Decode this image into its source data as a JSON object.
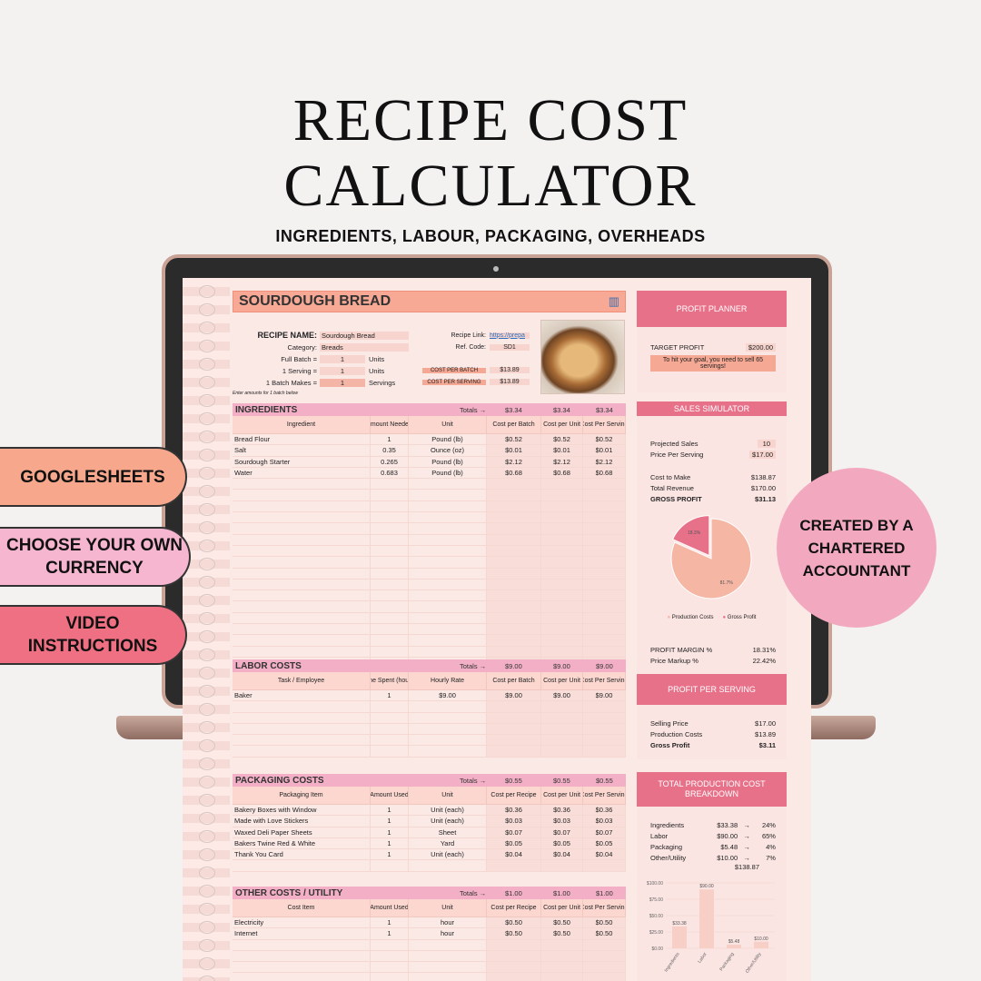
{
  "header": {
    "title_line1": "RECIPE COST",
    "title_line2": "CALCULATOR",
    "subtitle": "INGREDIENTS, LABOUR, PACKAGING, OVERHEADS"
  },
  "features": [
    "GOOGLESHEETS",
    "CHOOSE YOUR OWN CURRENCY",
    "VIDEO INSTRUCTIONS"
  ],
  "badge": "CREATED BY A CHARTERED ACCOUNTANT",
  "sheet": {
    "recipe_title": "SOURDOUGH BREAD",
    "info": {
      "name_label": "RECIPE NAME:",
      "name": "Sourdough Bread",
      "category_label": "Category:",
      "category": "Breads",
      "full_batch_label": "Full Batch =",
      "full_batch": "1",
      "full_batch_unit": "Units",
      "serving_label": "1 Serving =",
      "serving": "1",
      "serving_unit": "Units",
      "makes_label": "1 Batch Makes =",
      "makes": "1",
      "makes_unit": "Servings",
      "note": "Enter amounts for 1 batch below",
      "link_label": "Recipe Link:",
      "link": "https://prepa",
      "ref_label": "Ref. Code:",
      "ref": "SD1",
      "cpb_label": "COST PER BATCH",
      "cpb": "$13.89",
      "cps_label": "COST PER SERVING",
      "cps": "$13.89"
    },
    "totals_label": "Totals →",
    "ingredients": {
      "title": "INGREDIENTS",
      "totals": [
        "$3.34",
        "$3.34",
        "$3.34"
      ],
      "headers": [
        "Ingredient",
        "Amount Needed",
        "Unit",
        "Cost per Batch",
        "Cost per Unit",
        "Cost Per Serving"
      ],
      "rows": [
        [
          "Bread Flour",
          "1",
          "Pound (lb)",
          "$0.52",
          "$0.52",
          "$0.52"
        ],
        [
          "Salt",
          "0.35",
          "Ounce (oz)",
          "$0.01",
          "$0.01",
          "$0.01"
        ],
        [
          "Sourdough Starter",
          "0.265",
          "Pound (lb)",
          "$2.12",
          "$2.12",
          "$2.12"
        ],
        [
          "Water",
          "0.683",
          "Pound (lb)",
          "$0.68",
          "$0.68",
          "$0.68"
        ]
      ]
    },
    "labor": {
      "title": "LABOR COSTS",
      "totals": [
        "$9.00",
        "$9.00",
        "$9.00"
      ],
      "headers": [
        "Task / Employee",
        "Time Spent (hours)",
        "Hourly Rate",
        "Cost per Batch",
        "Cost per Unit",
        "Cost Per Serving"
      ],
      "rows": [
        [
          "Baker",
          "1",
          "$9.00",
          "$9.00",
          "$9.00",
          "$9.00"
        ]
      ]
    },
    "packaging": {
      "title": "PACKAGING COSTS",
      "totals": [
        "$0.55",
        "$0.55",
        "$0.55"
      ],
      "headers": [
        "Packaging Item",
        "Amount Used",
        "Unit",
        "Cost per Recipe",
        "Cost per Unit",
        "Cost Per Serving"
      ],
      "rows": [
        [
          "Bakery Boxes with Window",
          "1",
          "Unit (each)",
          "$0.36",
          "$0.36",
          "$0.36"
        ],
        [
          "Made with Love Stickers",
          "1",
          "Unit (each)",
          "$0.03",
          "$0.03",
          "$0.03"
        ],
        [
          "Waxed Deli Paper Sheets",
          "1",
          "Sheet",
          "$0.07",
          "$0.07",
          "$0.07"
        ],
        [
          "Bakers Twine Red & White",
          "1",
          "Yard",
          "$0.05",
          "$0.05",
          "$0.05"
        ],
        [
          "Thank You Card",
          "1",
          "Unit (each)",
          "$0.04",
          "$0.04",
          "$0.04"
        ]
      ]
    },
    "other": {
      "title": "OTHER COSTS / UTILITY",
      "totals": [
        "$1.00",
        "$1.00",
        "$1.00"
      ],
      "headers": [
        "Cost Item",
        "Amount Used",
        "Unit",
        "Cost per Recipe",
        "Cost per Unit",
        "Cost Per Serving"
      ],
      "rows": [
        [
          "Electricity",
          "1",
          "hour",
          "$0.50",
          "$0.50",
          "$0.50"
        ],
        [
          "Internet",
          "1",
          "hour",
          "$0.50",
          "$0.50",
          "$0.50"
        ]
      ]
    }
  },
  "side": {
    "profit_planner": {
      "title": "PROFIT PLANNER",
      "target_label": "TARGET PROFIT",
      "target": "$200.00",
      "message": "To hit your goal, you need to sell 65 servings!"
    },
    "sales": {
      "title": "SALES SIMULATOR",
      "proj_label": "Projected Sales",
      "proj": "10",
      "price_label": "Price Per Serving",
      "price": "$17.00",
      "cost_label": "Cost to Make",
      "cost": "$138.87",
      "rev_label": "Total Revenue",
      "rev": "$170.00",
      "gp_label": "GROSS PROFIT",
      "gp": "$31.13",
      "margin_label": "PROFIT MARGIN %",
      "margin": "18.31%",
      "markup_label": "Price Markup %",
      "markup": "22.42%"
    },
    "pps": {
      "title": "PROFIT PER SERVING",
      "sell_label": "Selling Price",
      "sell": "$17.00",
      "prod_label": "Production Costs",
      "prod": "$13.89",
      "gp_label": "Gross Profit",
      "gp": "$3.11"
    },
    "breakdown": {
      "title": "TOTAL PRODUCTION COST BREAKDOWN",
      "rows": [
        [
          "Ingredients",
          "$33.38",
          "→",
          "24%"
        ],
        [
          "Labor",
          "$90.00",
          "→",
          "65%"
        ],
        [
          "Packaging",
          "$5.48",
          "→",
          "4%"
        ],
        [
          "Other/Utility",
          "$10.00",
          "→",
          "7%"
        ]
      ],
      "total": "$138.87"
    }
  },
  "chart_data": [
    {
      "type": "pie",
      "labels": [
        "Production Costs",
        "Gross Profit"
      ],
      "values": [
        81.7,
        18.3
      ],
      "data_labels": [
        "81.7%",
        "18.3%"
      ],
      "colors": [
        "#f6b6a4",
        "#e8718a"
      ],
      "legend": "bottom"
    },
    {
      "type": "bar",
      "categories": [
        "Ingredients",
        "Labor",
        "Packaging",
        "Other/Utility"
      ],
      "values": [
        33.38,
        90.0,
        5.48,
        10.0
      ],
      "data_labels": [
        "$33.38",
        "$90.00",
        "$5.48",
        "$10.00"
      ],
      "ylim": [
        0,
        100
      ],
      "yticks": [
        "$100.00",
        "$75.00",
        "$50.00",
        "$25.00",
        "$0.00"
      ]
    }
  ]
}
